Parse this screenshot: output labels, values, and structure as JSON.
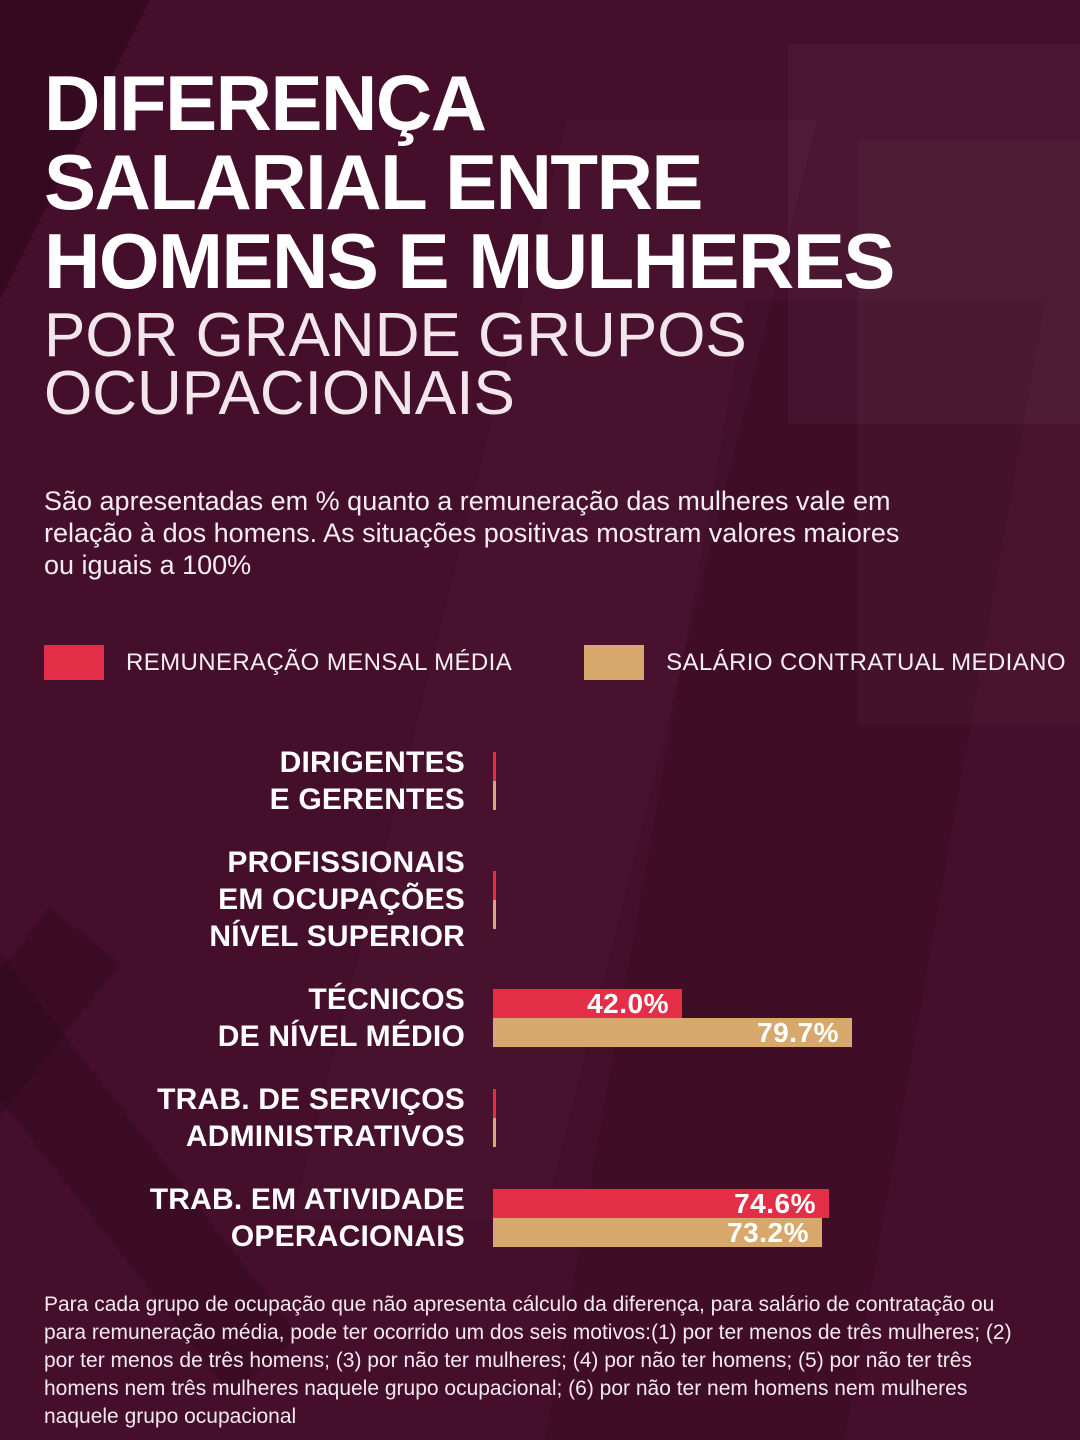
{
  "header": {
    "title_bold_lines": [
      "DIFERENÇA",
      "SALARIAL ENTRE",
      "HOMENS E MULHERES"
    ],
    "title_light_lines": [
      "POR GRANDE GRUPOS",
      "OCUPACIONAIS"
    ],
    "description": "São apresentadas em % quanto a remuneração das mulheres vale em relação à dos homens. As situações positivas mostram valores maiores ou iguais a 100%"
  },
  "colors": {
    "background": "#450e2a",
    "mean_remuneration": "#e42e48",
    "median_contract_salary": "#d8a76c",
    "text": "#ffffff"
  },
  "legend": [
    {
      "label": "REMUNERAÇÃO MENSAL MÉDIA",
      "color": "#e42e48"
    },
    {
      "label": "SALÁRIO CONTRATUAL MEDIANO",
      "color": "#d8a76c"
    }
  ],
  "chart_data": {
    "type": "bar",
    "orientation": "horizontal",
    "unit": "%",
    "xlim": [
      0,
      116
    ],
    "grid": false,
    "legend_position": "top",
    "categories": [
      [
        "DIRIGENTES",
        "E GERENTES"
      ],
      [
        "PROFISSIONAIS",
        "EM OCUPAÇÕES",
        "NÍVEL SUPERIOR"
      ],
      [
        "TÉCNICOS",
        "DE NÍVEL MÉDIO"
      ],
      [
        "TRAB. DE SERVIÇOS",
        "ADMINISTRATIVOS"
      ],
      [
        "TRAB. EM ATIVIDADE",
        "OPERACIONAIS"
      ]
    ],
    "series": [
      {
        "name": "REMUNERAÇÃO MENSAL MÉDIA",
        "color": "#e42e48",
        "values": [
          null,
          null,
          42.0,
          null,
          74.6
        ]
      },
      {
        "name": "SALÁRIO CONTRATUAL MEDIANO",
        "color": "#d8a76c",
        "values": [
          null,
          null,
          79.7,
          null,
          73.2
        ]
      }
    ],
    "value_labels": {
      "TÉCNICOS DE NÍVEL MÉDIO": [
        "42.0%",
        "79.7%"
      ],
      "TRAB. EM ATIVIDADE OPERACIONAIS": [
        "74.6%",
        "73.2%"
      ]
    },
    "no_data_rendering": "thin vertical tick at zero"
  },
  "footnote": "Para cada grupo de ocupação que não apresenta cálculo da diferença, para salário de contratação ou para remuneração média, pode ter ocorrido um dos seis motivos:(1) por ter menos de três mulheres; (2) por ter menos de três homens; (3) por não ter mulheres; (4) por não ter homens; (5) por não ter três homens nem três mulheres naquele grupo ocupacional; (6) por não ter nem homens nem mulheres naquele grupo ocupacional"
}
